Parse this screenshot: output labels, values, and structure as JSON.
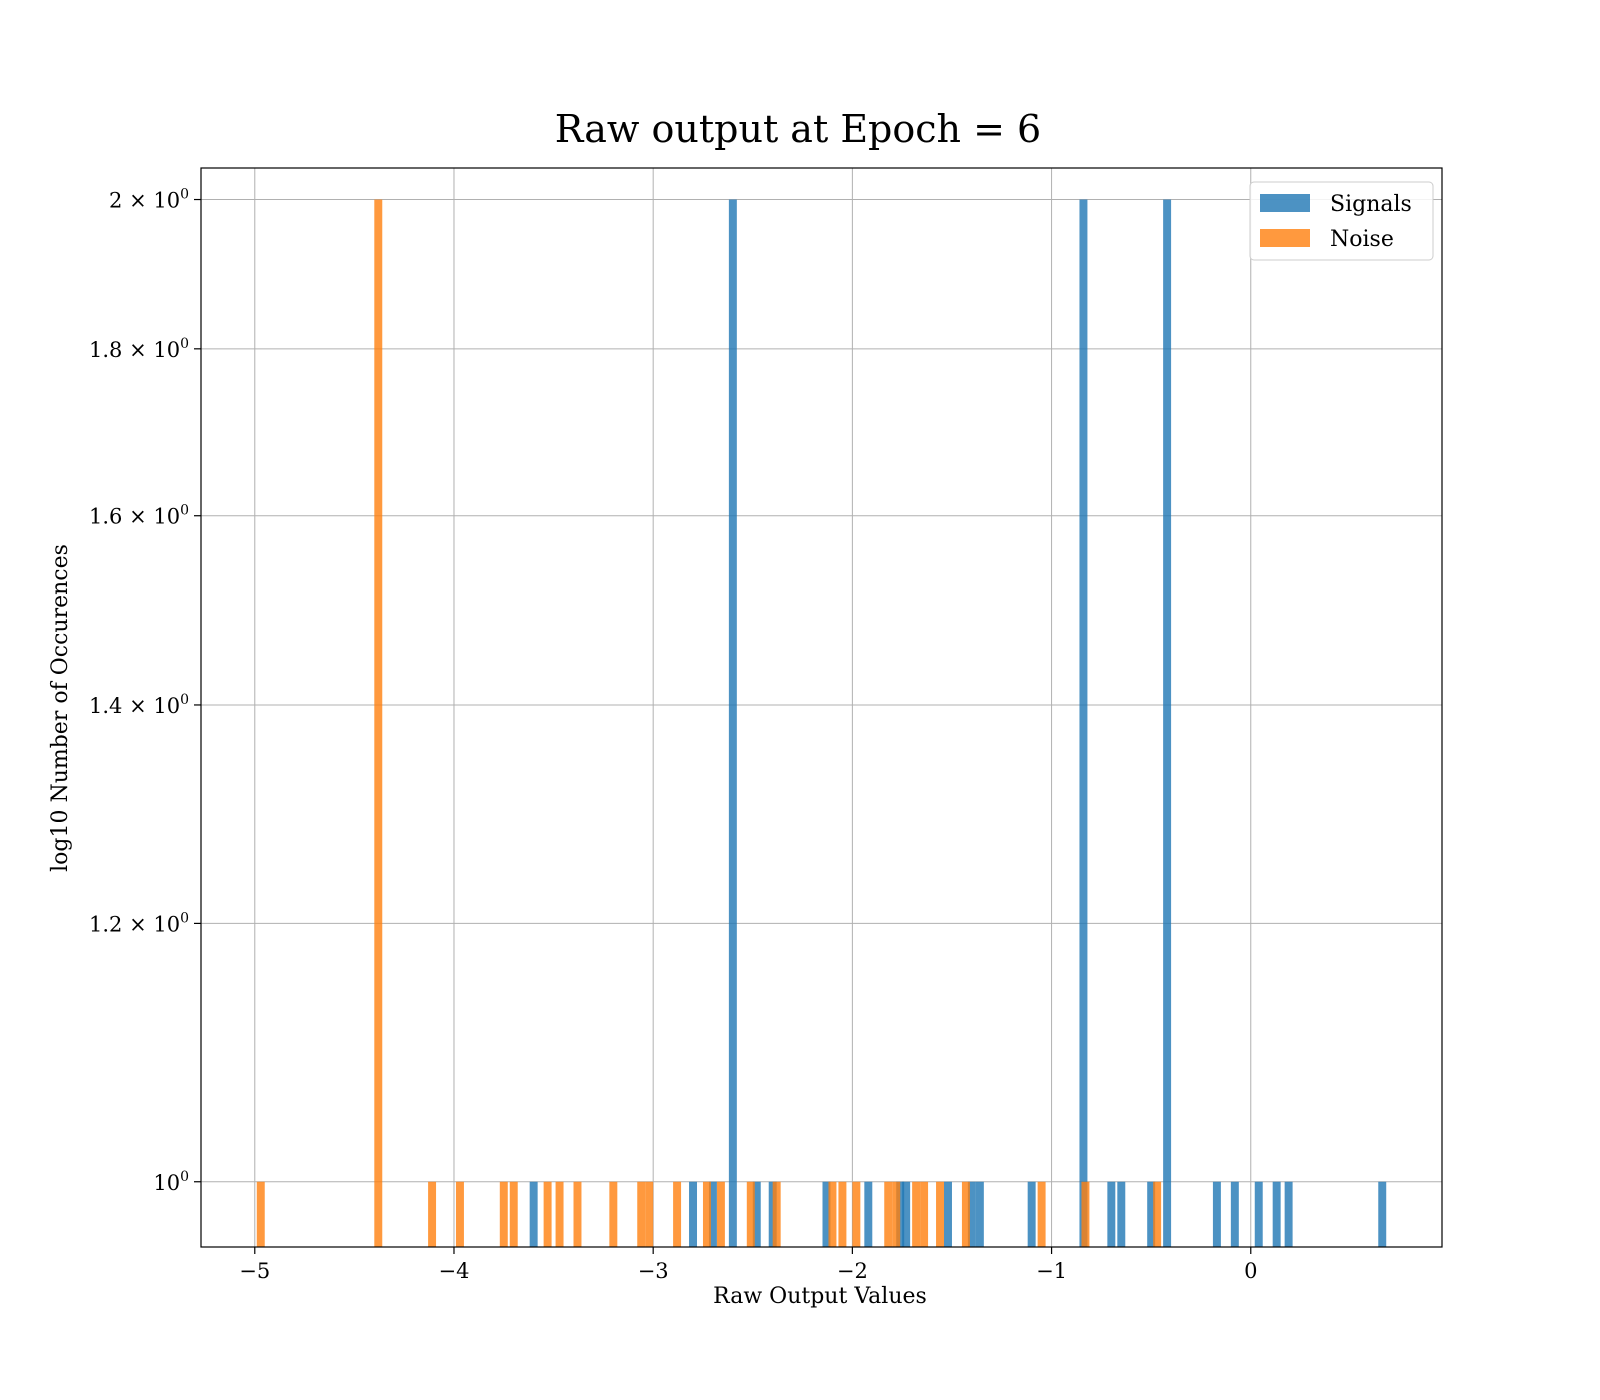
{
  "chart_data": {
    "type": "bar",
    "title": "Raw output at Epoch = 6",
    "xlabel": "Raw Output Values",
    "ylabel": "log10 Number of Occurences",
    "xlim": [
      -5.27,
      0.96
    ],
    "ylim": [
      0.955,
      2.045
    ],
    "yscale": "log",
    "bin_width": 0.04,
    "grid": true,
    "legend_position": "top-right",
    "x_ticks": [
      {
        "value": -5,
        "label": "−5"
      },
      {
        "value": -4,
        "label": "−4"
      },
      {
        "value": -3,
        "label": "−3"
      },
      {
        "value": -2,
        "label": "−2"
      },
      {
        "value": -1,
        "label": "−1"
      },
      {
        "value": 0,
        "label": "0"
      }
    ],
    "y_ticks": [
      {
        "value": 1.0,
        "base": "10",
        "exp": "0"
      },
      {
        "value": 1.2,
        "base": "1.2 × 10",
        "exp": "0"
      },
      {
        "value": 1.4,
        "base": "1.4 × 10",
        "exp": "0"
      },
      {
        "value": 1.6,
        "base": "1.6 × 10",
        "exp": "0"
      },
      {
        "value": 1.8,
        "base": "1.8 × 10",
        "exp": "0"
      },
      {
        "value": 2.0,
        "base": "2 × 10",
        "exp": "0"
      }
    ],
    "series": [
      {
        "name": "Signals",
        "color": "#1f77b4",
        "bins": [
          {
            "x": -3.6,
            "y": 1
          },
          {
            "x": -2.8,
            "y": 1
          },
          {
            "x": -2.7,
            "y": 1
          },
          {
            "x": -2.6,
            "y": 2
          },
          {
            "x": -2.48,
            "y": 1
          },
          {
            "x": -2.4,
            "y": 1
          },
          {
            "x": -2.13,
            "y": 1
          },
          {
            "x": -1.92,
            "y": 1
          },
          {
            "x": -1.76,
            "y": 1
          },
          {
            "x": -1.73,
            "y": 1
          },
          {
            "x": -1.52,
            "y": 1
          },
          {
            "x": -1.4,
            "y": 1
          },
          {
            "x": -1.36,
            "y": 1
          },
          {
            "x": -1.1,
            "y": 1
          },
          {
            "x": -0.84,
            "y": 2
          },
          {
            "x": -0.7,
            "y": 1
          },
          {
            "x": -0.65,
            "y": 1
          },
          {
            "x": -0.5,
            "y": 1
          },
          {
            "x": -0.42,
            "y": 2
          },
          {
            "x": -0.17,
            "y": 1
          },
          {
            "x": -0.08,
            "y": 1
          },
          {
            "x": 0.04,
            "y": 1
          },
          {
            "x": 0.13,
            "y": 1
          },
          {
            "x": 0.19,
            "y": 1
          },
          {
            "x": 0.66,
            "y": 1
          }
        ]
      },
      {
        "name": "Noise",
        "color": "#ff7f0e",
        "bins": [
          {
            "x": -4.97,
            "y": 1
          },
          {
            "x": -4.38,
            "y": 2
          },
          {
            "x": -4.11,
            "y": 1
          },
          {
            "x": -3.97,
            "y": 1
          },
          {
            "x": -3.75,
            "y": 1
          },
          {
            "x": -3.7,
            "y": 1
          },
          {
            "x": -3.53,
            "y": 1
          },
          {
            "x": -3.47,
            "y": 1
          },
          {
            "x": -3.38,
            "y": 1
          },
          {
            "x": -3.2,
            "y": 1
          },
          {
            "x": -3.06,
            "y": 1
          },
          {
            "x": -3.02,
            "y": 1
          },
          {
            "x": -2.88,
            "y": 1
          },
          {
            "x": -2.73,
            "y": 1
          },
          {
            "x": -2.66,
            "y": 1
          },
          {
            "x": -2.51,
            "y": 1
          },
          {
            "x": -2.38,
            "y": 1
          },
          {
            "x": -2.1,
            "y": 1
          },
          {
            "x": -2.05,
            "y": 1
          },
          {
            "x": -1.98,
            "y": 1
          },
          {
            "x": -1.82,
            "y": 1
          },
          {
            "x": -1.78,
            "y": 1
          },
          {
            "x": -1.68,
            "y": 1
          },
          {
            "x": -1.64,
            "y": 1
          },
          {
            "x": -1.56,
            "y": 1
          },
          {
            "x": -1.43,
            "y": 1
          },
          {
            "x": -1.05,
            "y": 1
          },
          {
            "x": -0.83,
            "y": 1
          },
          {
            "x": -0.47,
            "y": 1
          }
        ]
      }
    ]
  }
}
